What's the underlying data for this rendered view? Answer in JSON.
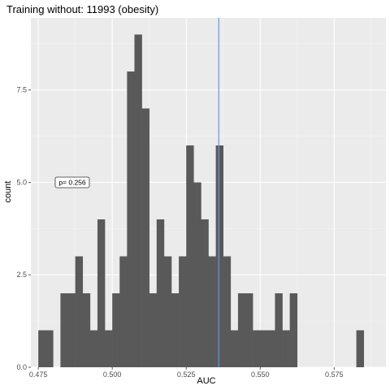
{
  "chart_data": {
    "type": "histogram",
    "title": "Training without: 11993 (obesity)",
    "xlabel": "AUC",
    "ylabel": "count",
    "bin_width": 0.0025,
    "bins": [
      {
        "x0": 0.475,
        "count": 1
      },
      {
        "x0": 0.4775,
        "count": 1
      },
      {
        "x0": 0.48,
        "count": 0
      },
      {
        "x0": 0.4825,
        "count": 2
      },
      {
        "x0": 0.485,
        "count": 2
      },
      {
        "x0": 0.4875,
        "count": 3
      },
      {
        "x0": 0.49,
        "count": 2
      },
      {
        "x0": 0.4925,
        "count": 1
      },
      {
        "x0": 0.495,
        "count": 4
      },
      {
        "x0": 0.4975,
        "count": 1
      },
      {
        "x0": 0.5,
        "count": 2
      },
      {
        "x0": 0.5025,
        "count": 3
      },
      {
        "x0": 0.505,
        "count": 8
      },
      {
        "x0": 0.5075,
        "count": 9
      },
      {
        "x0": 0.51,
        "count": 7
      },
      {
        "x0": 0.5125,
        "count": 2
      },
      {
        "x0": 0.515,
        "count": 4
      },
      {
        "x0": 0.5175,
        "count": 3
      },
      {
        "x0": 0.52,
        "count": 2
      },
      {
        "x0": 0.5225,
        "count": 3
      },
      {
        "x0": 0.525,
        "count": 6
      },
      {
        "x0": 0.5275,
        "count": 5
      },
      {
        "x0": 0.53,
        "count": 4
      },
      {
        "x0": 0.5325,
        "count": 3
      },
      {
        "x0": 0.535,
        "count": 6
      },
      {
        "x0": 0.5375,
        "count": 3
      },
      {
        "x0": 0.54,
        "count": 1
      },
      {
        "x0": 0.5425,
        "count": 2
      },
      {
        "x0": 0.545,
        "count": 2
      },
      {
        "x0": 0.5475,
        "count": 1
      },
      {
        "x0": 0.55,
        "count": 1
      },
      {
        "x0": 0.5525,
        "count": 1
      },
      {
        "x0": 0.555,
        "count": 2
      },
      {
        "x0": 0.5575,
        "count": 1
      },
      {
        "x0": 0.56,
        "count": 2
      },
      {
        "x0": 0.5825,
        "count": 1
      }
    ],
    "xlim": [
      0.4725,
      0.5925
    ],
    "ylim": [
      0,
      9.45
    ],
    "x_ticks": [
      0.475,
      0.5,
      0.525,
      0.55,
      0.575
    ],
    "x_tick_labels": [
      "0.475",
      "0.500",
      "0.525",
      "0.550",
      "0.575"
    ],
    "y_ticks": [
      0,
      2.5,
      5,
      7.5
    ],
    "y_tick_labels": [
      "0.0",
      "2.5",
      "5.0",
      "7.5"
    ],
    "vline": {
      "x": 0.536,
      "color": "#6699dd"
    },
    "annotation": {
      "text": "p= 0.256",
      "x": 0.4865,
      "y": 5.0
    },
    "grid": true,
    "colors": {
      "bar": "#595959",
      "panel": "#ebebeb",
      "grid_major": "#ffffff",
      "grid_minor": "#f5f5f5"
    }
  }
}
